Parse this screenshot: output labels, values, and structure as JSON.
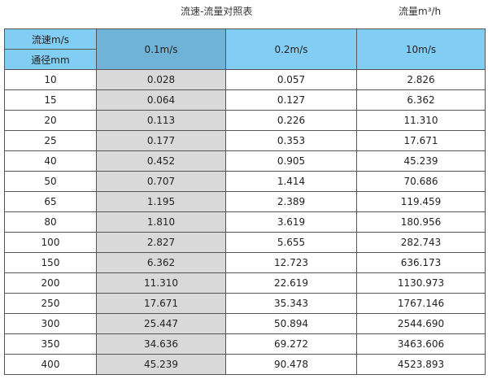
{
  "title": "流速-流量对照表",
  "unit_label": "流量m³/h",
  "header": {
    "velocity_label": "流速m/s",
    "diameter_label": "通径mm",
    "columns": [
      "0.1m/s",
      "0.2m/s",
      "10m/s"
    ]
  },
  "rows": [
    [
      "10",
      "0.028",
      "0.057",
      "2.826"
    ],
    [
      "15",
      "0.064",
      "0.127",
      "6.362"
    ],
    [
      "20",
      "0.113",
      "0.226",
      "11.310"
    ],
    [
      "25",
      "0.177",
      "0.353",
      "17.671"
    ],
    [
      "40",
      "0.452",
      "0.905",
      "45.239"
    ],
    [
      "50",
      "0.707",
      "1.414",
      "70.686"
    ],
    [
      "65",
      "1.195",
      "2.389",
      "119.459"
    ],
    [
      "80",
      "1.810",
      "3.619",
      "180.956"
    ],
    [
      "100",
      "2.827",
      "5.655",
      "282.743"
    ],
    [
      "150",
      "6.362",
      "12.723",
      "636.173"
    ],
    [
      "200",
      "11.310",
      "22.619",
      "1130.973"
    ],
    [
      "250",
      "17.671",
      "35.343",
      "1767.146"
    ],
    [
      "300",
      "25.447",
      "50.894",
      "2544.690"
    ],
    [
      "350",
      "34.636",
      "69.272",
      "3463.606"
    ],
    [
      "400",
      "45.239",
      "90.478",
      "4523.893"
    ]
  ],
  "colors": {
    "header": "#82cdf3",
    "header_selected": "#6fb3d6",
    "highlight_column": "#d9d9d9"
  }
}
